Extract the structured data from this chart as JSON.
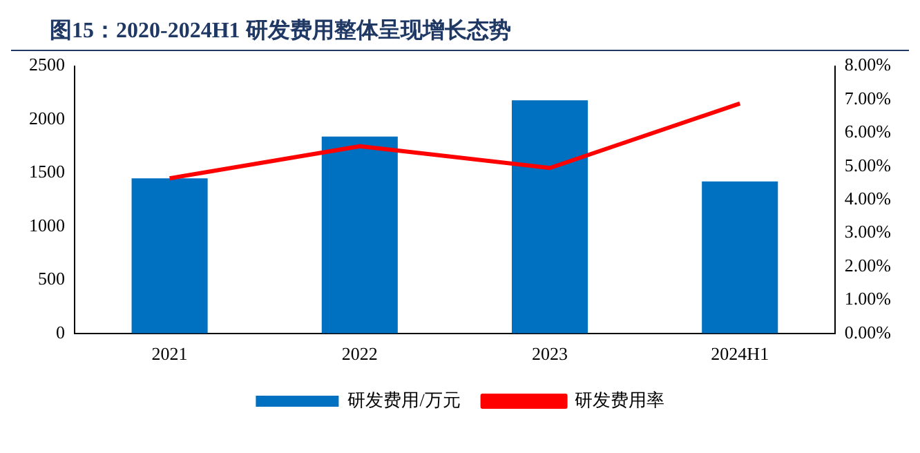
{
  "chart_data": {
    "type": "bar",
    "title": "图15：2020-2024H1 研发费用整体呈现增长态势",
    "categories": [
      "2021",
      "2022",
      "2023",
      "2024H1"
    ],
    "series": [
      {
        "name": "研发费用/万元",
        "color": "#0070c0",
        "values": [
          1450,
          1840,
          2180,
          1420
        ]
      },
      {
        "name": "研发费用率",
        "type": "line",
        "axis": "y2",
        "color": "#ff0000",
        "marker": "none",
        "values": [
          4.64,
          5.6,
          4.95,
          6.88
        ]
      }
    ],
    "ylim": [
      0,
      2500
    ],
    "yticks": [
      0,
      500,
      1000,
      1500,
      2000,
      2500
    ],
    "y2lim": [
      0,
      8
    ],
    "y2ticks": [
      {
        "value": 0,
        "label": "0.00%"
      },
      {
        "value": 1,
        "label": "1.00%"
      },
      {
        "value": 2,
        "label": "2.00%"
      },
      {
        "value": 3,
        "label": "3.00%"
      },
      {
        "value": 4,
        "label": "4.00%"
      },
      {
        "value": 5,
        "label": "5.00%"
      },
      {
        "value": 6,
        "label": "6.00%"
      },
      {
        "value": 7,
        "label": "7.00%"
      },
      {
        "value": 8,
        "label": "8.00%"
      }
    ],
    "grid": false,
    "legend": "bottom"
  }
}
